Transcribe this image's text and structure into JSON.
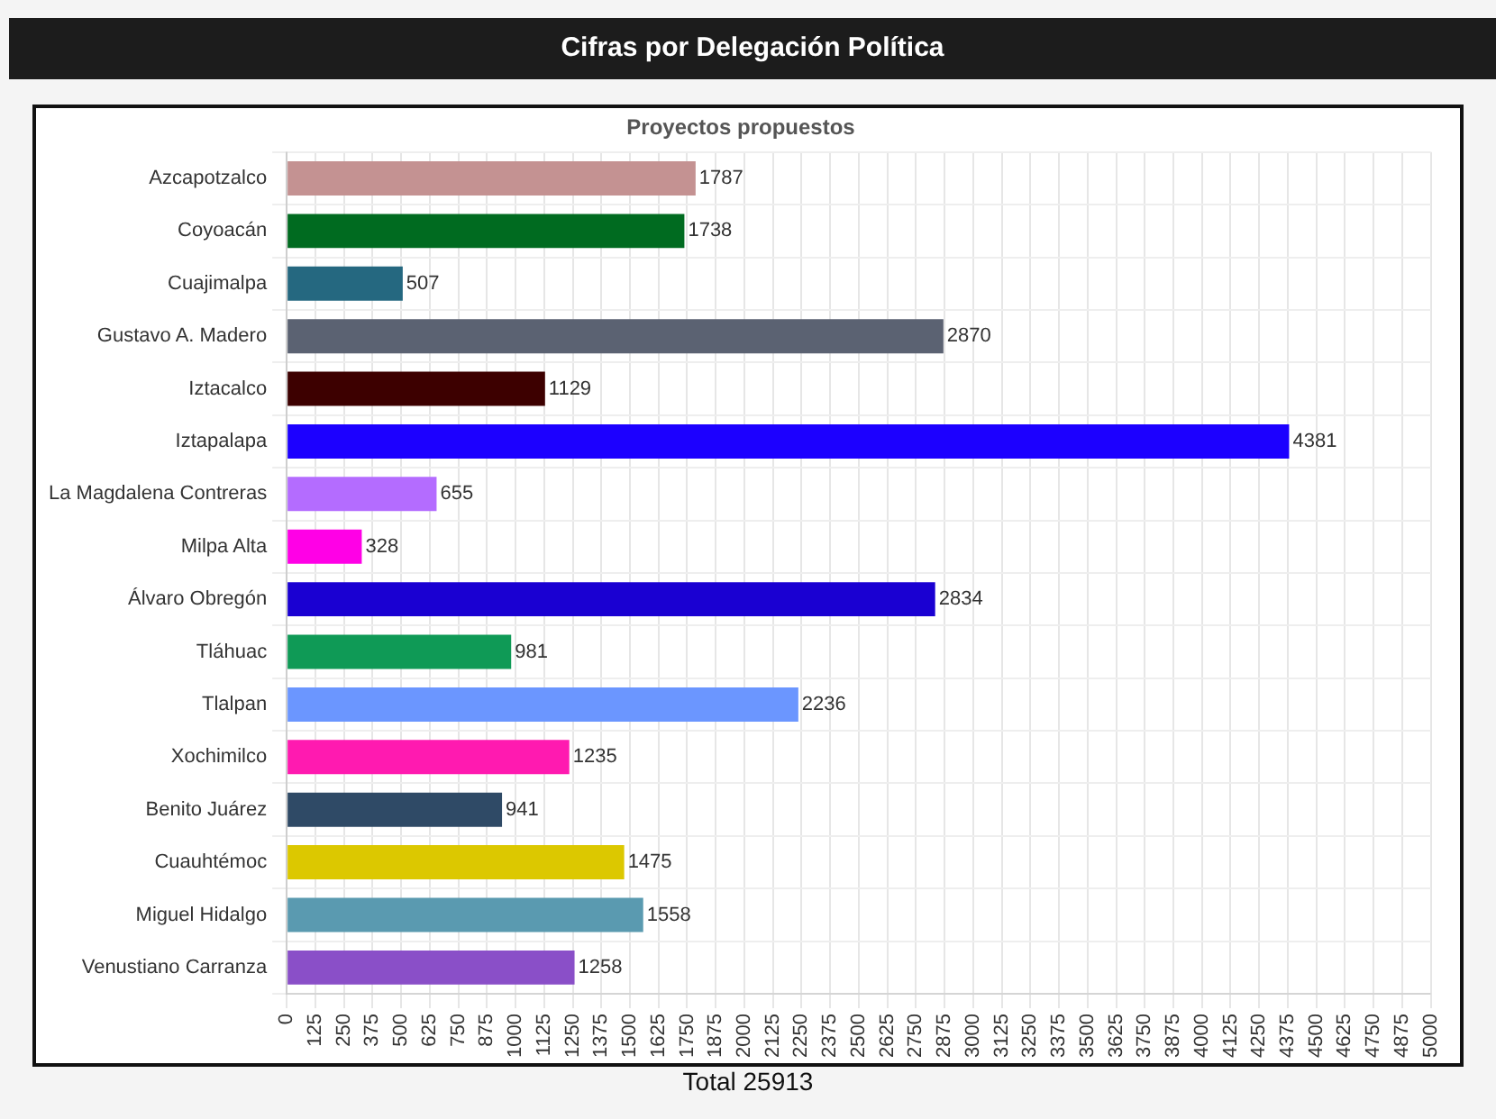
{
  "chart_data": {
    "type": "bar",
    "orientation": "horizontal",
    "title": "Cifras por Delegación Política",
    "subtitle": "Proyectos propuestos",
    "categories": [
      "Azcapotzalco",
      "Coyoacán",
      "Cuajimalpa",
      "Gustavo A. Madero",
      "Iztacalco",
      "Iztapalapa",
      "La Magdalena Contreras",
      "Milpa Alta",
      "Álvaro Obregón",
      "Tláhuac",
      "Tlalpan",
      "Xochimilco",
      "Benito Juárez",
      "Cuauhtémoc",
      "Miguel Hidalgo",
      "Venustiano Carranza"
    ],
    "values": [
      1787,
      1738,
      507,
      2870,
      1129,
      4381,
      655,
      328,
      2834,
      981,
      2236,
      1235,
      941,
      1475,
      1558,
      1258
    ],
    "colors": [
      "#c49292",
      "#006b20",
      "#256880",
      "#5b6272",
      "#3d0000",
      "#1c00ff",
      "#b46cff",
      "#ff00e6",
      "#1a00d2",
      "#0f9a56",
      "#6b96ff",
      "#ff1ab0",
      "#2f4a66",
      "#dcc800",
      "#5a9ab0",
      "#8a4fc8"
    ],
    "xlim": [
      0,
      5000
    ],
    "xticks": [
      0,
      125,
      250,
      375,
      500,
      625,
      750,
      875,
      1000,
      1125,
      1250,
      1375,
      1500,
      1625,
      1750,
      1875,
      2000,
      2125,
      2250,
      2375,
      2500,
      2625,
      2750,
      2875,
      3000,
      3125,
      3250,
      3375,
      3500,
      3625,
      3750,
      3875,
      4000,
      4125,
      4250,
      4375,
      4500,
      4625,
      4750,
      4875,
      5000
    ],
    "data_labels": true,
    "grid": true,
    "legend": false,
    "annotations": [
      "Total 25913"
    ]
  }
}
